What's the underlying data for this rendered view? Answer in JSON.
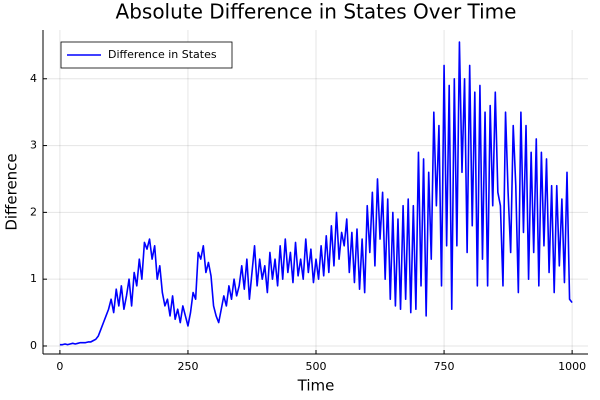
{
  "chart_data": {
    "type": "line",
    "title": "Absolute Difference in States Over Time",
    "xlabel": "Time",
    "ylabel": "Difference",
    "x": [
      0,
      5,
      10,
      15,
      20,
      25,
      30,
      35,
      40,
      45,
      50,
      55,
      60,
      65,
      70,
      75,
      80,
      85,
      90,
      95,
      100,
      105,
      110,
      115,
      120,
      125,
      130,
      135,
      140,
      145,
      150,
      155,
      160,
      165,
      170,
      175,
      180,
      185,
      190,
      195,
      200,
      205,
      210,
      215,
      220,
      225,
      230,
      235,
      240,
      245,
      250,
      255,
      260,
      265,
      270,
      275,
      280,
      285,
      290,
      295,
      300,
      305,
      310,
      315,
      320,
      325,
      330,
      335,
      340,
      345,
      350,
      355,
      360,
      365,
      370,
      375,
      380,
      385,
      390,
      395,
      400,
      405,
      410,
      415,
      420,
      425,
      430,
      435,
      440,
      445,
      450,
      455,
      460,
      465,
      470,
      475,
      480,
      485,
      490,
      495,
      500,
      505,
      510,
      515,
      520,
      525,
      530,
      535,
      540,
      545,
      550,
      555,
      560,
      565,
      570,
      575,
      580,
      585,
      590,
      595,
      600,
      605,
      610,
      615,
      620,
      625,
      630,
      635,
      640,
      645,
      650,
      655,
      660,
      665,
      670,
      675,
      680,
      685,
      690,
      695,
      700,
      705,
      710,
      715,
      720,
      725,
      730,
      735,
      740,
      745,
      750,
      755,
      760,
      765,
      770,
      775,
      780,
      785,
      790,
      795,
      800,
      805,
      810,
      815,
      820,
      825,
      830,
      835,
      840,
      845,
      850,
      855,
      860,
      865,
      870,
      875,
      880,
      885,
      890,
      895,
      900,
      905,
      910,
      915,
      920,
      925,
      930,
      935,
      940,
      945,
      950,
      955,
      960,
      965,
      970,
      975,
      980,
      985,
      990,
      995,
      1000
    ],
    "series": [
      {
        "name": "Difference in States",
        "color": "#0000ff",
        "values": [
          0.02,
          0.02,
          0.03,
          0.02,
          0.03,
          0.04,
          0.03,
          0.04,
          0.05,
          0.05,
          0.05,
          0.06,
          0.06,
          0.08,
          0.1,
          0.15,
          0.25,
          0.35,
          0.45,
          0.55,
          0.7,
          0.5,
          0.85,
          0.6,
          0.9,
          0.55,
          0.75,
          1.0,
          0.6,
          1.1,
          0.9,
          1.3,
          1.0,
          1.55,
          1.45,
          1.6,
          1.3,
          1.5,
          1.0,
          1.2,
          0.8,
          0.6,
          0.7,
          0.45,
          0.75,
          0.4,
          0.55,
          0.35,
          0.6,
          0.45,
          0.3,
          0.5,
          0.8,
          0.7,
          1.4,
          1.3,
          1.5,
          1.1,
          1.25,
          1.05,
          0.6,
          0.45,
          0.35,
          0.55,
          0.75,
          0.6,
          0.9,
          0.7,
          1.0,
          0.75,
          0.9,
          1.2,
          0.85,
          1.3,
          0.7,
          1.1,
          1.5,
          0.9,
          1.3,
          1.0,
          1.2,
          0.8,
          1.4,
          1.0,
          1.3,
          0.9,
          1.5,
          1.0,
          1.6,
          1.1,
          1.4,
          0.95,
          1.55,
          1.05,
          1.3,
          1.0,
          1.6,
          1.1,
          1.45,
          0.95,
          1.3,
          1.0,
          1.5,
          1.05,
          1.65,
          1.1,
          1.8,
          1.2,
          2.0,
          1.3,
          1.7,
          1.5,
          1.9,
          1.1,
          1.7,
          0.95,
          1.75,
          0.85,
          1.6,
          0.8,
          2.1,
          1.4,
          2.3,
          1.2,
          2.5,
          1.6,
          2.3,
          1.0,
          2.2,
          0.7,
          2.0,
          0.6,
          1.9,
          0.55,
          2.1,
          0.7,
          2.2,
          0.5,
          2.1,
          0.55,
          2.9,
          0.9,
          2.8,
          0.45,
          2.6,
          1.3,
          3.5,
          2.1,
          3.3,
          0.9,
          4.2,
          1.5,
          3.9,
          0.55,
          4.0,
          1.5,
          4.55,
          2.6,
          4.0,
          1.4,
          4.2,
          1.8,
          3.8,
          0.9,
          3.9,
          1.3,
          3.5,
          0.9,
          3.6,
          2.1,
          3.8,
          2.3,
          2.1,
          0.9,
          3.5,
          2.3,
          1.4,
          3.3,
          2.4,
          0.8,
          3.5,
          1.7,
          3.3,
          1.0,
          2.9,
          1.4,
          3.1,
          0.9,
          2.9,
          1.5,
          2.8,
          1.1,
          2.4,
          0.8,
          2.4,
          1.2,
          2.2,
          0.95,
          2.6,
          0.7,
          0.65
        ]
      }
    ],
    "xlim": [
      -33,
      1031
    ],
    "ylim": [
      -0.12,
      4.73
    ],
    "xticks": [
      0,
      250,
      500,
      750,
      1000
    ],
    "yticks": [
      0,
      1,
      2,
      3,
      4
    ],
    "grid": true,
    "legend": "top-left"
  }
}
